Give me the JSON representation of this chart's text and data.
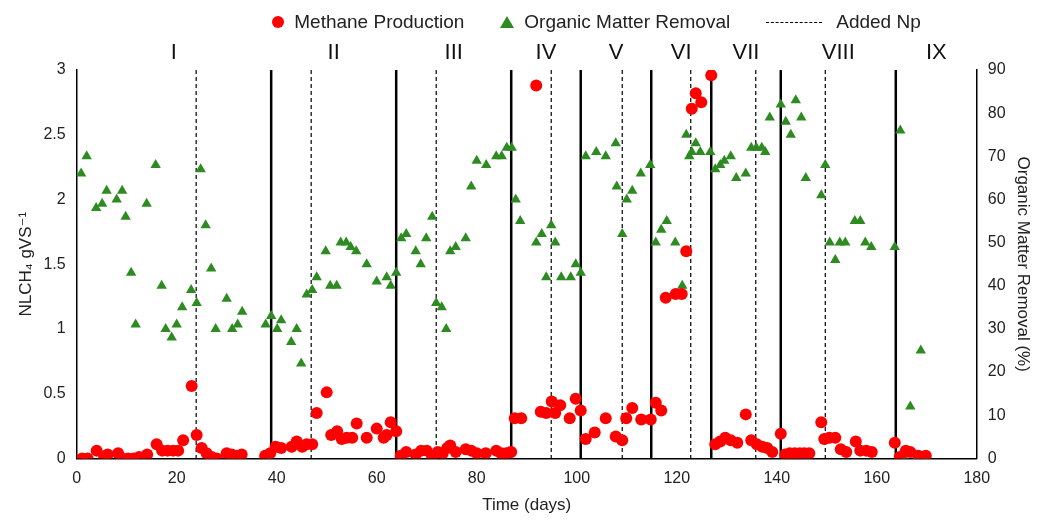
{
  "chart_data": {
    "type": "scatter",
    "xlabel": "Time (days)",
    "ylabel": "NLCH₄ gVS⁻¹",
    "y2label": "Organic Matter Removal (%)",
    "xlim": [
      0,
      180
    ],
    "xticks": [
      0,
      20,
      40,
      60,
      80,
      100,
      120,
      140,
      160,
      180
    ],
    "ylim": [
      0,
      3
    ],
    "yticks": [
      0,
      0.5,
      1,
      1.5,
      2,
      2.5,
      3
    ],
    "y2lim": [
      0,
      90
    ],
    "y2ticks": [
      0,
      10,
      20,
      30,
      40,
      50,
      60,
      70,
      80,
      90
    ],
    "grid": false,
    "legend": "top",
    "series": [
      {
        "name": "Methane Production",
        "color": "#ff0000",
        "marker": "circle",
        "x": [
          1.1,
          2.2,
          4,
          5.5,
          6.2,
          8.3,
          9.1,
          10.3,
          11.4,
          12.5,
          14.1,
          16,
          17.1,
          18.2,
          19.3,
          20.3,
          21.3,
          23,
          24,
          25,
          26,
          27,
          28,
          30,
          31,
          32,
          33,
          37.7,
          38.7,
          39.8,
          40.9,
          43,
          44,
          45.1,
          46,
          47.1,
          48,
          50,
          50.9,
          52.1,
          53,
          54,
          55.1,
          56,
          58,
          60,
          61.4,
          62,
          62.8,
          63.9,
          64.8,
          65.9,
          67.8,
          68.9,
          70,
          71.1,
          72.2,
          73.2,
          74.1,
          74.7,
          75.8,
          77.8,
          78.9,
          80,
          81.8,
          83.9,
          84.9,
          85.9,
          86.9,
          87.6,
          88.9,
          91.9,
          92.8,
          93.9,
          95,
          95.7,
          96.7,
          98.6,
          99.8,
          100.8,
          101.8,
          103.6,
          105.8,
          107.8,
          109.1,
          109.9,
          111.1,
          112.9,
          114.8,
          115.8,
          116.9,
          117.8,
          119.8,
          121,
          121.9,
          123,
          123.8,
          124.9,
          126.9,
          127.7,
          128.7,
          129.7,
          130.8,
          132.1,
          133.8,
          134.9,
          136,
          137.1,
          138.1,
          139.1,
          140.8,
          141.7,
          142.6,
          143.6,
          144.6,
          145.5,
          146.5,
          148.9,
          149.5,
          150.5,
          151.7,
          152.8,
          153.9,
          155.8,
          156.7,
          157.9,
          159,
          163.6,
          164.6,
          165.8,
          166.7,
          168.3,
          169.8
        ],
        "values": [
          0,
          0,
          0.06,
          0.01,
          0.03,
          0.04,
          0,
          0,
          0,
          0.01,
          0.03,
          0.11,
          0.06,
          0.06,
          0.06,
          0.06,
          0.14,
          0.56,
          0.18,
          0.08,
          0.04,
          0.01,
          0,
          0.04,
          0.03,
          0.02,
          0.03,
          0.02,
          0.04,
          0.09,
          0.08,
          0.09,
          0.13,
          0.09,
          0.11,
          0.11,
          0.35,
          0.51,
          0.18,
          0.21,
          0.15,
          0.16,
          0.16,
          0.27,
          0.16,
          0.23,
          0.16,
          0.18,
          0.28,
          0.21,
          0.02,
          0.05,
          0.03,
          0.06,
          0.06,
          0.01,
          0.05,
          0.04,
          0.08,
          0.1,
          0.05,
          0.07,
          0.06,
          0.04,
          0.04,
          0.06,
          0.04,
          0.04,
          0.05,
          0.31,
          0.31,
          2.88,
          0.36,
          0.35,
          0.44,
          0.35,
          0.41,
          0.31,
          0.46,
          0.37,
          0.15,
          0.2,
          0.31,
          0.17,
          0.14,
          0.31,
          0.39,
          0.3,
          0.3,
          0.43,
          0.37,
          1.24,
          1.27,
          1.27,
          1.6,
          2.7,
          2.82,
          2.75,
          2.96,
          0.11,
          0.13,
          0.16,
          0.14,
          0.12,
          0.34,
          0.14,
          0.11,
          0.09,
          0.08,
          0.05,
          0.19,
          0.03,
          0.04,
          0.04,
          0.04,
          0.04,
          0.04,
          0.28,
          0.15,
          0.16,
          0.16,
          0.07,
          0.05,
          0.13,
          0.06,
          0.06,
          0.05,
          0.12,
          0.01,
          0.06,
          0.05,
          0.02,
          0.02
        ]
      },
      {
        "name": "Organic Matter Removal",
        "color": "#2e8b22",
        "marker": "triangle",
        "axis": "y2",
        "x": [
          0.9,
          2,
          3.9,
          5.1,
          6,
          8,
          9.1,
          9.8,
          10.9,
          11.8,
          14,
          15.8,
          17,
          17.8,
          19,
          20,
          21.1,
          22.9,
          24,
          24.8,
          25.8,
          26.9,
          27.8,
          30,
          31.1,
          32.2,
          33.1,
          37.8,
          38.9,
          40.1,
          40.9,
          42.9,
          44,
          44.9,
          46,
          47.1,
          48,
          49.8,
          50.7,
          52,
          52.8,
          53.9,
          54.8,
          55.9,
          58,
          60,
          62,
          62.8,
          63.9,
          64.9,
          65.9,
          67.8,
          68.8,
          69.9,
          71.1,
          71.9,
          73,
          73.9,
          74.7,
          75.8,
          77.8,
          78.9,
          80,
          81.9,
          83.9,
          85,
          86,
          87,
          87.8,
          88.7,
          91.9,
          93,
          93.9,
          94.9,
          95.7,
          96.9,
          98.8,
          99.8,
          100.8,
          101.8,
          103.9,
          105.8,
          107.8,
          108,
          109.1,
          110,
          111.1,
          112.8,
          114.7,
          115.8,
          116.9,
          118,
          119.7,
          121.1,
          121.9,
          122.5,
          123,
          123.8,
          124.7,
          126.7,
          127.7,
          128.7,
          129.5,
          130.8,
          131.9,
          133.8,
          134.9,
          135.9,
          137,
          137.7,
          138.6,
          140.8,
          141.8,
          142.8,
          143.8,
          144.9,
          145.8,
          148.9,
          149.7,
          150.6,
          151.7,
          152.6,
          153.7,
          155.6,
          156.7,
          157.7,
          158.9,
          163.6,
          164.7,
          165.6,
          166.7,
          167.9,
          168.8,
          169.9
        ],
        "values": [
          66,
          70,
          58,
          59,
          62,
          60,
          62,
          56,
          43,
          31,
          59,
          68,
          40,
          30,
          28,
          31,
          35,
          39,
          36,
          67,
          54,
          44,
          30,
          37,
          30,
          31,
          34,
          31,
          33,
          30,
          32,
          27,
          30,
          22,
          38,
          39,
          42,
          48,
          40,
          40,
          50,
          50,
          49,
          48,
          45,
          41,
          42,
          40,
          43,
          51,
          52,
          48,
          45,
          51,
          56,
          36,
          35,
          30,
          48,
          49,
          51,
          63,
          69,
          68,
          70,
          70,
          72,
          72,
          60,
          55,
          50,
          52,
          42,
          54,
          50,
          42,
          42,
          45,
          43,
          70,
          71,
          70,
          73,
          63,
          52,
          60,
          62,
          66,
          68,
          50,
          53,
          55,
          50,
          40,
          75,
          70,
          71,
          73,
          71,
          71,
          67,
          68,
          69,
          70,
          65,
          66,
          72,
          72,
          72,
          71,
          79,
          82,
          78,
          75,
          83,
          79,
          65,
          61,
          68,
          50,
          46,
          50,
          50,
          55,
          55,
          50,
          49,
          49,
          76,
          0,
          12,
          0,
          25,
          0
        ]
      }
    ],
    "ref_lines": [
      {
        "axis": "x",
        "value": 38.9,
        "line_style": "solid",
        "color": "#000000"
      },
      {
        "axis": "x",
        "value": 63.9,
        "line_style": "solid",
        "color": "#000000"
      },
      {
        "axis": "x",
        "value": 86.9,
        "line_style": "solid",
        "color": "#000000"
      },
      {
        "axis": "x",
        "value": 100.8,
        "line_style": "solid",
        "color": "#000000"
      },
      {
        "axis": "x",
        "value": 114.9,
        "line_style": "solid",
        "color": "#000000"
      },
      {
        "axis": "x",
        "value": 126.9,
        "line_style": "solid",
        "color": "#000000"
      },
      {
        "axis": "x",
        "value": 140.8,
        "line_style": "solid",
        "color": "#000000"
      },
      {
        "axis": "x",
        "value": 163.8,
        "line_style": "solid",
        "color": "#000000"
      },
      {
        "axis": "x",
        "value": 23.9,
        "line_style": "dashed",
        "color": "#000000",
        "label": "Added Np"
      },
      {
        "axis": "x",
        "value": 46.9,
        "line_style": "dashed",
        "color": "#000000"
      },
      {
        "axis": "x",
        "value": 71.9,
        "line_style": "dashed",
        "color": "#000000"
      },
      {
        "axis": "x",
        "value": 94.9,
        "line_style": "dashed",
        "color": "#000000"
      },
      {
        "axis": "x",
        "value": 109.1,
        "line_style": "dashed",
        "color": "#000000"
      },
      {
        "axis": "x",
        "value": 122.8,
        "line_style": "dashed",
        "color": "#000000"
      },
      {
        "axis": "x",
        "value": 135.8,
        "line_style": "dashed",
        "color": "#000000"
      },
      {
        "axis": "x",
        "value": 149.7,
        "line_style": "dashed",
        "color": "#000000"
      }
    ],
    "annotations": [
      "I",
      "II",
      "III",
      "IV",
      "V",
      "VI",
      "VII",
      "VIII",
      "IX"
    ]
  }
}
